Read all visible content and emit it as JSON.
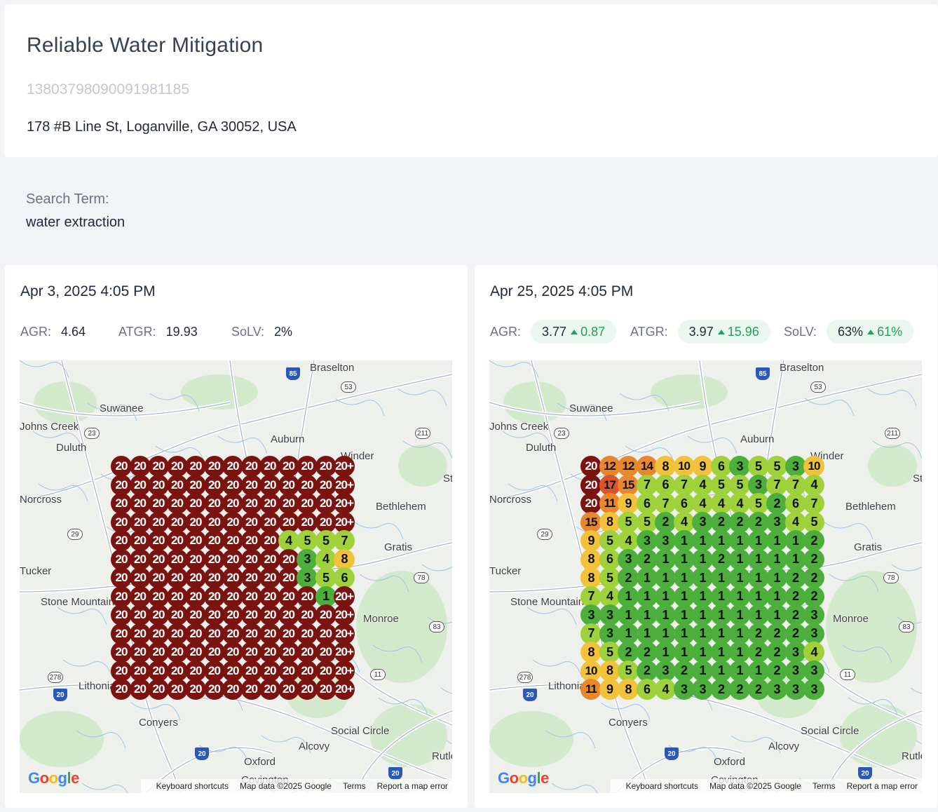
{
  "business": {
    "name": "Reliable Water Mitigation",
    "id": "13803798090091981185",
    "address": "178 #B Line St, Loganville, GA 30052, USA"
  },
  "search": {
    "label": "Search Term:",
    "term": "water extraction"
  },
  "scans": [
    {
      "date": "Apr 3, 2025 4:05 PM",
      "metrics": {
        "agr_label": "AGR:",
        "agr": "4.64",
        "atgr_label": "ATGR:",
        "atgr": "19.93",
        "solv_label": "SoLV:",
        "solv": "2%"
      },
      "grid": [
        [
          "20",
          "20",
          "20",
          "20",
          "20",
          "20",
          "20",
          "20",
          "20",
          "20",
          "20",
          "20",
          "20+"
        ],
        [
          "20",
          "20",
          "20",
          "20",
          "20",
          "20",
          "20",
          "20",
          "20",
          "20",
          "20",
          "20",
          "20+"
        ],
        [
          "20",
          "20",
          "20",
          "20",
          "20",
          "20",
          "20",
          "20",
          "20",
          "20",
          "20",
          "20",
          "20+"
        ],
        [
          "20",
          "20",
          "20",
          "20",
          "20",
          "20",
          "20",
          "20",
          "20",
          "20",
          "20",
          "20",
          "20+"
        ],
        [
          "20",
          "20",
          "20",
          "20",
          "20",
          "20",
          "20",
          "20",
          "20",
          "4",
          "5",
          "5",
          "7"
        ],
        [
          "20",
          "20",
          "20",
          "20",
          "20",
          "20",
          "20",
          "20",
          "20",
          "20",
          "3",
          "4",
          "8"
        ],
        [
          "20",
          "20",
          "20",
          "20",
          "20",
          "20",
          "20",
          "20",
          "20",
          "20",
          "3",
          "5",
          "6"
        ],
        [
          "20",
          "20",
          "20",
          "20",
          "20",
          "20",
          "20",
          "20",
          "20",
          "20",
          "20",
          "1",
          "20+"
        ],
        [
          "20",
          "20",
          "20",
          "20",
          "20",
          "20",
          "20",
          "20",
          "20",
          "20",
          "20",
          "20",
          "20+"
        ],
        [
          "20",
          "20",
          "20",
          "20",
          "20",
          "20",
          "20",
          "20",
          "20",
          "20",
          "20",
          "20",
          "20+"
        ],
        [
          "20",
          "20",
          "20",
          "20",
          "20",
          "20",
          "20",
          "20",
          "20",
          "20",
          "20",
          "20",
          "20+"
        ],
        [
          "20",
          "20",
          "20",
          "20",
          "20",
          "20",
          "20",
          "20",
          "20",
          "20",
          "20",
          "20",
          "20+"
        ],
        [
          "20",
          "20",
          "20",
          "20",
          "20",
          "20",
          "20",
          "20",
          "20",
          "20",
          "20",
          "20",
          "20+"
        ]
      ]
    },
    {
      "date": "Apr 25, 2025 4:05 PM",
      "metrics": {
        "agr_label": "AGR:",
        "agr": "3.77",
        "agr_delta": "0.87",
        "atgr_label": "ATGR:",
        "atgr": "3.97",
        "atgr_delta": "15.96",
        "solv_label": "SoLV:",
        "solv": "63%",
        "solv_delta": "61%"
      },
      "grid": [
        [
          "20",
          "12",
          "12",
          "14",
          "8",
          "10",
          "9",
          "6",
          "3",
          "5",
          "5",
          "3",
          "10"
        ],
        [
          "20",
          "17",
          "15",
          "7",
          "6",
          "7",
          "4",
          "5",
          "5",
          "3",
          "7",
          "7",
          "4"
        ],
        [
          "20",
          "11",
          "9",
          "6",
          "7",
          "6",
          "4",
          "4",
          "4",
          "5",
          "2",
          "6",
          "7"
        ],
        [
          "15",
          "8",
          "5",
          "5",
          "2",
          "4",
          "3",
          "2",
          "2",
          "2",
          "3",
          "4",
          "5"
        ],
        [
          "9",
          "5",
          "4",
          "3",
          "3",
          "1",
          "1",
          "1",
          "1",
          "1",
          "1",
          "1",
          "2"
        ],
        [
          "8",
          "6",
          "3",
          "2",
          "1",
          "1",
          "1",
          "2",
          "1",
          "1",
          "1",
          "1",
          "2"
        ],
        [
          "8",
          "5",
          "2",
          "1",
          "1",
          "1",
          "1",
          "1",
          "1",
          "1",
          "1",
          "2",
          "2"
        ],
        [
          "7",
          "4",
          "1",
          "1",
          "1",
          "1",
          "1",
          "1",
          "1",
          "1",
          "1",
          "2",
          "2"
        ],
        [
          "3",
          "3",
          "1",
          "1",
          "1",
          "1",
          "1",
          "1",
          "1",
          "1",
          "1",
          "2",
          "3"
        ],
        [
          "7",
          "3",
          "1",
          "1",
          "1",
          "1",
          "1",
          "1",
          "1",
          "2",
          "2",
          "2",
          "3"
        ],
        [
          "8",
          "5",
          "2",
          "2",
          "1",
          "1",
          "1",
          "1",
          "1",
          "2",
          "2",
          "3",
          "4"
        ],
        [
          "10",
          "8",
          "5",
          "2",
          "3",
          "2",
          "1",
          "1",
          "1",
          "1",
          "2",
          "3",
          "3"
        ],
        [
          "11",
          "9",
          "8",
          "6",
          "4",
          "3",
          "3",
          "2",
          "2",
          "2",
          "3",
          "3",
          "3"
        ]
      ]
    }
  ],
  "map": {
    "places": [
      "Braselton",
      "Suwanee",
      "Auburn",
      "Winder",
      "Duluth",
      "Statham",
      "Bethlehem",
      "Gratis",
      "Stone Mountain",
      "Monroe",
      "Lithonia",
      "Conyers",
      "Social Circle",
      "Alcovy",
      "Oxford",
      "Rutledge",
      "Covington",
      "Norcross",
      "Tucker",
      "Johns Creek"
    ],
    "shields": [
      "85",
      "53",
      "23",
      "211",
      "29",
      "78",
      "83",
      "11",
      "278",
      "20",
      "20",
      "20"
    ],
    "footer": {
      "shortcuts": "Keyboard shortcuts",
      "mapdata": "Map data ©2025 Google",
      "terms": "Terms",
      "report": "Report a map error"
    },
    "logo": "Google"
  },
  "colors": {
    "rank_1_3": "#4caf3b",
    "rank_4_7": "#9fd13a",
    "rank_8_10": "#f2c23a",
    "rank_11_15": "#e8872e",
    "rank_16_19": "#d9552b",
    "rank_20": "#7b1410",
    "delta_up": "#22a15a"
  }
}
